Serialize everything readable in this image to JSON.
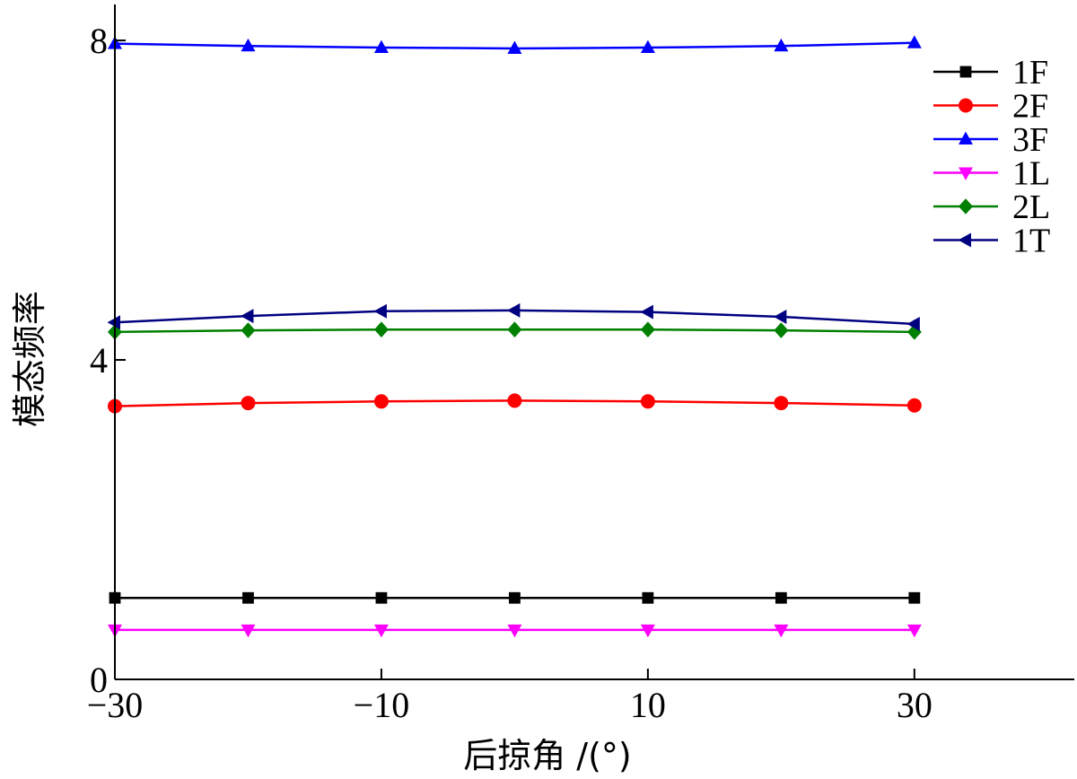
{
  "chart_data": {
    "type": "line",
    "xlabel": "后掠角 /(°)",
    "ylabel": "模态频率",
    "x": [
      -30,
      -20,
      -10,
      0,
      10,
      20,
      30
    ],
    "x_ticks": [
      -30,
      -10,
      10,
      30
    ],
    "y_ticks": [
      0,
      4,
      8
    ],
    "xlim": [
      -30,
      42
    ],
    "ylim": [
      0,
      8.45
    ],
    "grid": false,
    "legend_position": "top-right",
    "series": [
      {
        "name": "1F",
        "color": "#000000",
        "marker": "square",
        "values": [
          1.02,
          1.02,
          1.02,
          1.02,
          1.02,
          1.02,
          1.02
        ]
      },
      {
        "name": "2F",
        "color": "#ff0000",
        "marker": "circle",
        "values": [
          3.42,
          3.46,
          3.48,
          3.49,
          3.48,
          3.46,
          3.43
        ]
      },
      {
        "name": "3F",
        "color": "#0000ff",
        "marker": "triangle-up",
        "values": [
          7.96,
          7.93,
          7.91,
          7.9,
          7.91,
          7.93,
          7.97
        ]
      },
      {
        "name": "1L",
        "color": "#ff00ff",
        "marker": "triangle-down",
        "values": [
          0.62,
          0.62,
          0.62,
          0.62,
          0.62,
          0.62,
          0.62
        ]
      },
      {
        "name": "2L",
        "color": "#008000",
        "marker": "diamond",
        "values": [
          4.35,
          4.37,
          4.38,
          4.38,
          4.38,
          4.37,
          4.35
        ]
      },
      {
        "name": "1T",
        "color": "#000080",
        "marker": "triangle-left",
        "values": [
          4.47,
          4.55,
          4.61,
          4.62,
          4.6,
          4.54,
          4.45
        ]
      }
    ]
  }
}
